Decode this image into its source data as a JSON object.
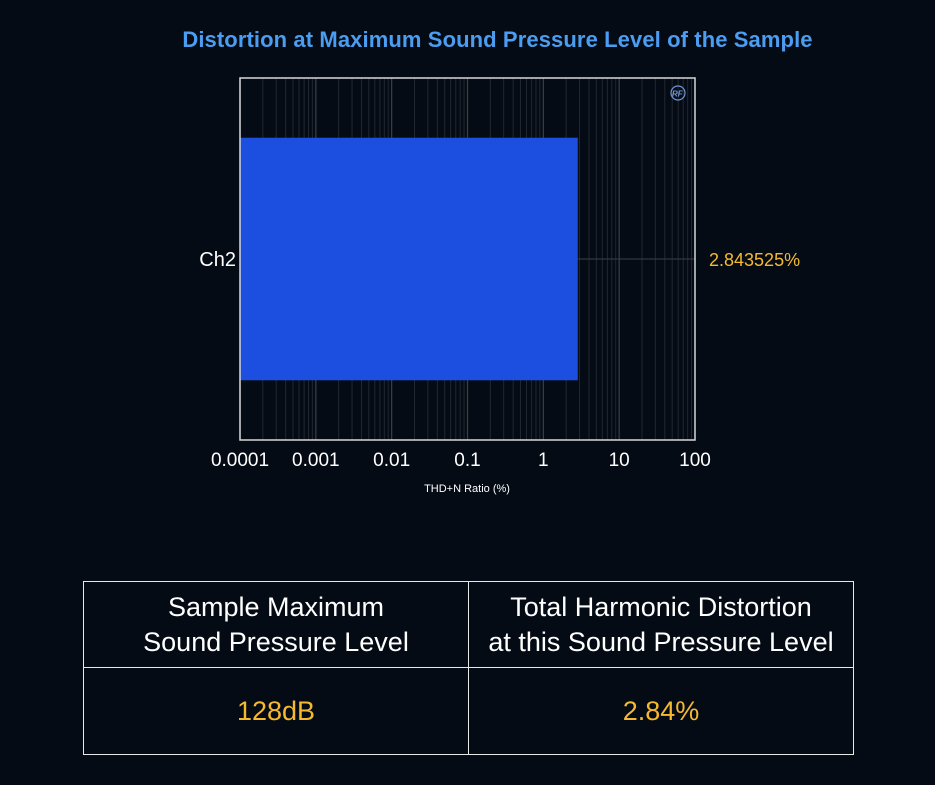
{
  "chart_data": {
    "type": "bar",
    "orientation": "horizontal",
    "title": "Distortion at Maximum Sound Pressure Level of the Sample",
    "xlabel": "THD+N Ratio (%)",
    "ylabel": "",
    "x_scale": "log",
    "xlim": [
      0.0001,
      100
    ],
    "x_ticks": [
      "0.0001",
      "0.001",
      "0.01",
      "0.1",
      "1",
      "10",
      "100"
    ],
    "categories": [
      "Ch2"
    ],
    "values": [
      2.843525
    ],
    "value_labels": [
      "2.843525%"
    ],
    "grid": true,
    "bar_color": "#1c4fe0",
    "title_color": "#4a9df0",
    "value_label_color": "#f5b930"
  },
  "table": {
    "headers": [
      [
        "Sample Maximum",
        "Sound Pressure Level"
      ],
      [
        "Total Harmonic Distortion",
        "at this Sound Pressure Level"
      ]
    ],
    "values": [
      "128dB",
      "2.84%"
    ]
  },
  "logo": {
    "icon": "rf-logo-icon"
  }
}
